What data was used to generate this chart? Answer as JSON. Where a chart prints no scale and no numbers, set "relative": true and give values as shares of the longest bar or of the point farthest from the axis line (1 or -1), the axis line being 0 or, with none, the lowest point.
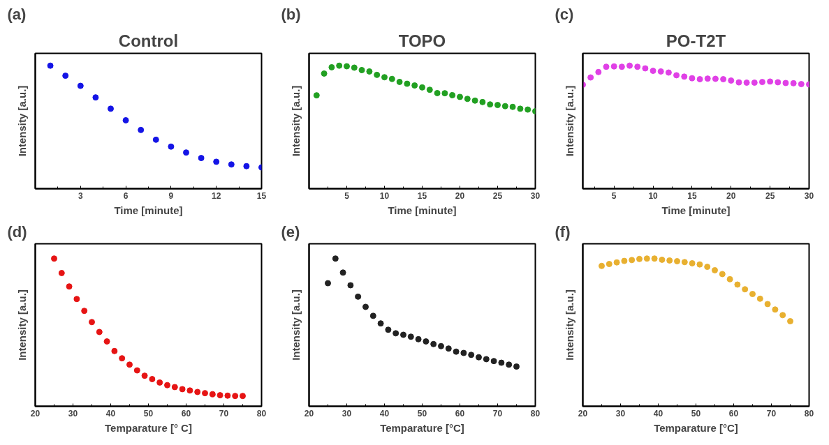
{
  "chart_data": [
    {
      "type": "scatter",
      "title": "Control",
      "annotations": [
        "(a)"
      ],
      "xlabel": "Time [minute]",
      "ylabel": "Intensity [a.u.]",
      "relative": true,
      "marker": "circle",
      "xlim": [
        0,
        15
      ],
      "xticks": [
        3,
        6,
        9,
        12,
        15
      ],
      "x": [
        1,
        2,
        3,
        4,
        5,
        6,
        7,
        8,
        9,
        10,
        11,
        12,
        13,
        14,
        15
      ],
      "series": [
        {
          "color": "#1414e6",
          "values": [
            1,
            0.918,
            0.836,
            0.742,
            0.65,
            0.556,
            0.477,
            0.398,
            0.342,
            0.294,
            0.249,
            0.219,
            0.197,
            0.183,
            0.173
          ]
        }
      ]
    },
    {
      "type": "scatter",
      "title": "TOPO",
      "annotations": [
        "(b)"
      ],
      "xlabel": "Time [minute]",
      "ylabel": "Intensity [a.u.]",
      "relative": true,
      "marker": "circle",
      "xlim": [
        0,
        30
      ],
      "xticks": [
        5,
        10,
        15,
        20,
        25,
        30
      ],
      "x": [
        1,
        2,
        3,
        4,
        5,
        6,
        7,
        8,
        9,
        10,
        11,
        12,
        13,
        14,
        15,
        16,
        17,
        18,
        19,
        20,
        21,
        22,
        23,
        24,
        25,
        26,
        27,
        28,
        29,
        30
      ],
      "series": [
        {
          "color": "#22a022",
          "values": [
            0.759,
            0.936,
            0.987,
            1,
            0.995,
            0.984,
            0.964,
            0.953,
            0.925,
            0.906,
            0.892,
            0.868,
            0.853,
            0.839,
            0.823,
            0.804,
            0.777,
            0.776,
            0.76,
            0.746,
            0.73,
            0.716,
            0.704,
            0.685,
            0.68,
            0.671,
            0.665,
            0.65,
            0.643,
            0.63
          ]
        }
      ]
    },
    {
      "type": "scatter",
      "title": "PO-T2T",
      "annotations": [
        "(c)"
      ],
      "xlabel": "Time [minute]",
      "ylabel": "Intensity [a.u.]",
      "relative": true,
      "marker": "circle",
      "xlim": [
        1,
        30
      ],
      "xticks": [
        5,
        10,
        15,
        20,
        25,
        30
      ],
      "x": [
        1,
        2,
        3,
        4,
        5,
        6,
        7,
        8,
        9,
        10,
        11,
        12,
        13,
        14,
        15,
        16,
        17,
        18,
        19,
        20,
        21,
        22,
        23,
        24,
        25,
        26,
        27,
        28,
        29,
        30
      ],
      "series": [
        {
          "color": "#e040e6",
          "values": [
            0.845,
            0.904,
            0.948,
            0.991,
            0.994,
            0.991,
            1,
            0.991,
            0.978,
            0.958,
            0.953,
            0.944,
            0.922,
            0.911,
            0.898,
            0.89,
            0.895,
            0.893,
            0.89,
            0.879,
            0.864,
            0.862,
            0.862,
            0.867,
            0.871,
            0.865,
            0.859,
            0.857,
            0.85,
            0.848
          ]
        }
      ]
    },
    {
      "type": "scatter",
      "annotations": [
        "(d)"
      ],
      "xlabel": "Temparature [° C]",
      "ylabel": "Intensity [a.u.]",
      "relative": true,
      "marker": "circle",
      "xlim": [
        20,
        80
      ],
      "xticks": [
        20,
        30,
        40,
        50,
        60,
        70,
        80
      ],
      "x": [
        25,
        27,
        29,
        31,
        33,
        35,
        37,
        39,
        41,
        43,
        45,
        47,
        49,
        51,
        53,
        55,
        57,
        59,
        61,
        63,
        65,
        67,
        69,
        71,
        73,
        75
      ],
      "series": [
        {
          "color": "#e61414",
          "values": [
            1,
            0.902,
            0.811,
            0.726,
            0.646,
            0.57,
            0.503,
            0.439,
            0.374,
            0.325,
            0.282,
            0.243,
            0.207,
            0.184,
            0.161,
            0.143,
            0.13,
            0.116,
            0.107,
            0.097,
            0.089,
            0.082,
            0.075,
            0.072,
            0.07,
            0.07
          ]
        }
      ]
    },
    {
      "type": "scatter",
      "annotations": [
        "(e)"
      ],
      "xlabel": "Temparature [°C]",
      "ylabel": "Intensity [a.u.]",
      "relative": true,
      "marker": "circle",
      "xlim": [
        20,
        80
      ],
      "xticks": [
        20,
        30,
        40,
        50,
        60,
        70,
        80
      ],
      "x": [
        25,
        27,
        29,
        31,
        33,
        35,
        37,
        39,
        41,
        43,
        45,
        47,
        49,
        51,
        53,
        55,
        57,
        59,
        61,
        63,
        65,
        67,
        69,
        71,
        73,
        75
      ],
      "series": [
        {
          "color": "#222222",
          "values": [
            0.833,
            1,
            0.905,
            0.819,
            0.742,
            0.673,
            0.612,
            0.561,
            0.518,
            0.494,
            0.484,
            0.471,
            0.454,
            0.439,
            0.421,
            0.407,
            0.391,
            0.37,
            0.361,
            0.348,
            0.332,
            0.319,
            0.306,
            0.295,
            0.282,
            0.269
          ]
        }
      ]
    },
    {
      "type": "scatter",
      "annotations": [
        "(f)"
      ],
      "xlabel": "Temparature [°C]",
      "ylabel": "Intensity [a.u.]",
      "relative": true,
      "marker": "circle",
      "xlim": [
        20,
        80
      ],
      "xticks": [
        20,
        30,
        40,
        50,
        60,
        70,
        80
      ],
      "x": [
        25,
        27,
        29,
        31,
        33,
        35,
        37,
        39,
        41,
        43,
        45,
        47,
        49,
        51,
        53,
        55,
        57,
        59,
        61,
        63,
        65,
        67,
        69,
        71,
        73,
        75
      ],
      "series": [
        {
          "color": "#e8b030",
          "values": [
            0.95,
            0.963,
            0.974,
            0.984,
            0.99,
            0.997,
            1,
            1,
            0.992,
            0.987,
            0.982,
            0.976,
            0.968,
            0.96,
            0.944,
            0.921,
            0.895,
            0.86,
            0.824,
            0.792,
            0.76,
            0.728,
            0.692,
            0.655,
            0.617,
            0.576
          ]
        }
      ]
    }
  ]
}
